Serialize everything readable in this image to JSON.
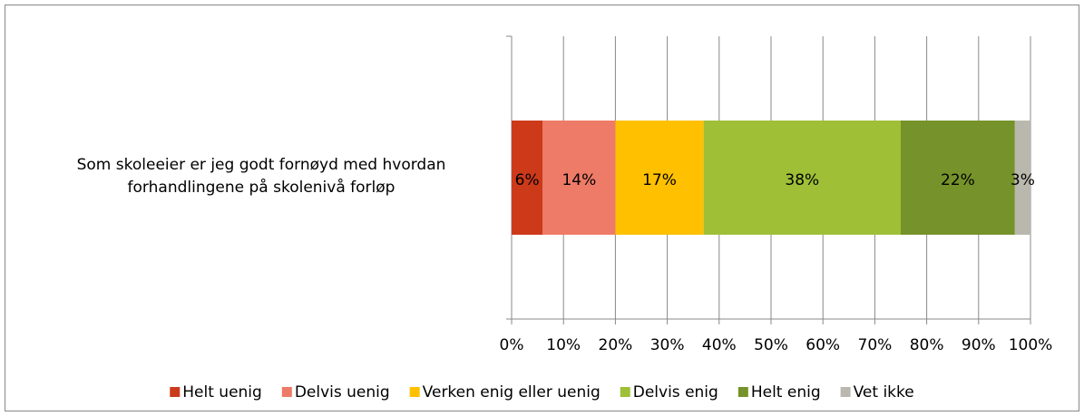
{
  "chart_data": {
    "type": "stacked_bar_horizontal",
    "categories": [
      "Som skoleeier er jeg godt fornøyd med hvordan forhandlingene på skolenivå forløp"
    ],
    "series": [
      {
        "name": "Helt uenig",
        "color": "#cc3a1a",
        "values": [
          6
        ],
        "value_labels": [
          "6%"
        ]
      },
      {
        "name": "Delvis uenig",
        "color": "#ee7b67",
        "values": [
          14
        ],
        "value_labels": [
          "14%"
        ]
      },
      {
        "name": "Verken enig eller uenig",
        "color": "#ffc000",
        "values": [
          17
        ],
        "value_labels": [
          "17%"
        ]
      },
      {
        "name": "Delvis enig",
        "color": "#9fbf37",
        "values": [
          38
        ],
        "value_labels": [
          "38%"
        ]
      },
      {
        "name": "Helt enig",
        "color": "#76922a",
        "values": [
          22
        ],
        "value_labels": [
          "22%"
        ]
      },
      {
        "name": "Vet ikke",
        "color": "#bab8ae",
        "values": [
          3
        ],
        "value_labels": [
          "3%"
        ]
      }
    ],
    "xlim": [
      0,
      100
    ],
    "xticks": [
      {
        "value": 0,
        "label": "0%"
      },
      {
        "value": 10,
        "label": "10%"
      },
      {
        "value": 20,
        "label": "20%"
      },
      {
        "value": 30,
        "label": "30%"
      },
      {
        "value": 40,
        "label": "40%"
      },
      {
        "value": 50,
        "label": "50%"
      },
      {
        "value": 60,
        "label": "60%"
      },
      {
        "value": 70,
        "label": "70%"
      },
      {
        "value": 80,
        "label": "80%"
      },
      {
        "value": 90,
        "label": "90%"
      },
      {
        "value": 100,
        "label": "100%"
      }
    ],
    "grid": true,
    "legend": "bottom"
  }
}
